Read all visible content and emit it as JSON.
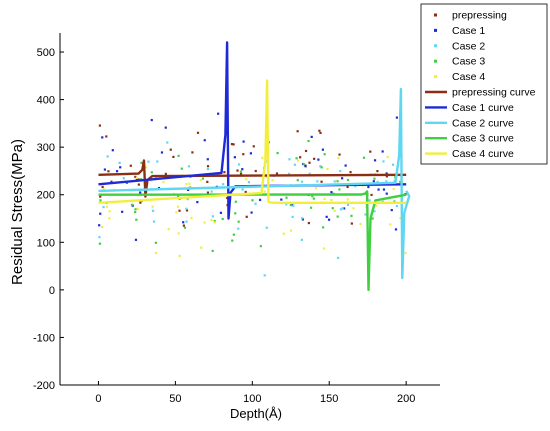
{
  "chart_data": {
    "type": "scatter",
    "xlabel": "Depth(Å)",
    "ylabel": "Residual Stress(MPa)",
    "xlim": [
      -25,
      222
    ],
    "ylim": [
      -200,
      540
    ],
    "xticks": [
      0,
      50,
      100,
      150,
      200
    ],
    "yticks": [
      -200,
      -100,
      0,
      100,
      200,
      300,
      400,
      500
    ],
    "grid": false,
    "legend_position": "top-right",
    "point_series": [
      {
        "name": "prepressing",
        "color": "#8b2f14"
      },
      {
        "name": "Case 1",
        "color": "#1e2ad8"
      },
      {
        "name": "Case 2",
        "color": "#5fd6f2"
      },
      {
        "name": "Case 3",
        "color": "#3fcf3f"
      },
      {
        "name": "Case 4",
        "color": "#f2ef3c"
      }
    ],
    "curves": [
      {
        "name": "prepressing curve",
        "color": "#8b2f14",
        "baseline": 242,
        "disturbance_x": 30,
        "peak": 272,
        "trough": 196
      },
      {
        "name": "Case 1 curve",
        "color": "#1e2ad8",
        "baseline": 222,
        "disturbance_x": 84,
        "peak": 520,
        "trough": 150
      },
      {
        "name": "Case 2 curve",
        "color": "#5fd6f2",
        "baseline": 208,
        "disturbance_x": 197,
        "peak": 422,
        "trough": 25
      },
      {
        "name": "Case 3 curve",
        "color": "#3fcf3f",
        "baseline": 200,
        "disturbance_x": 175,
        "peak": 207,
        "trough": 0
      },
      {
        "name": "Case 4 curve",
        "color": "#f2ef3c",
        "baseline": 183,
        "disturbance_x": 110,
        "peak": 440,
        "trough": 185
      }
    ]
  }
}
